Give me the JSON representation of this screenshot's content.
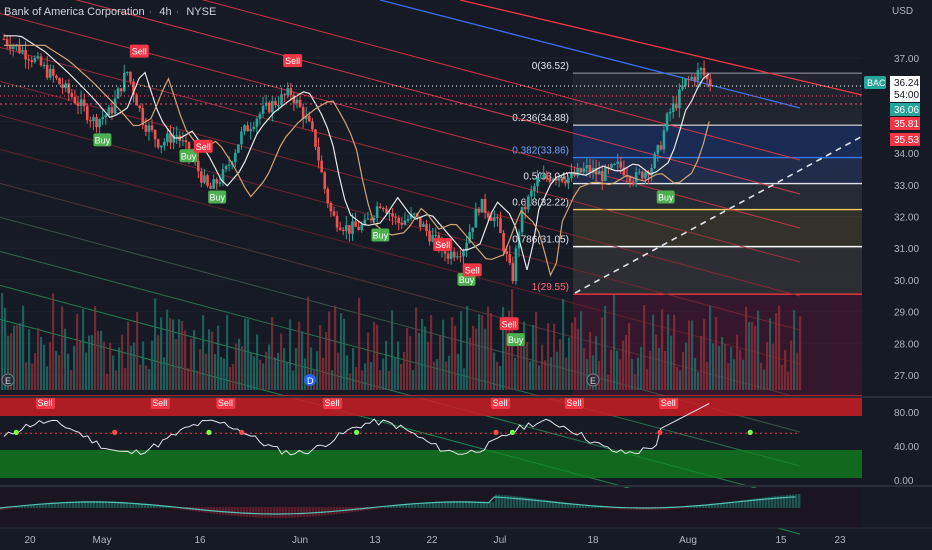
{
  "header": {
    "symbol_name": "Bank of America Corporation",
    "interval": "4h",
    "exchange": "NYSE"
  },
  "price_axis": {
    "currency": "USD",
    "ticks": [
      "37.00",
      "36.00",
      "35.00",
      "34.00",
      "33.00",
      "32.00",
      "31.00",
      "30.00",
      "29.00",
      "28.00",
      "27.00"
    ]
  },
  "badges": {
    "symbol": "BAC",
    "last_price": "36.24",
    "countdown": "54:00",
    "level_green": "36.06",
    "level_red_1": "35.81",
    "level_red_2": "35.53"
  },
  "time_axis": {
    "labels": [
      "20",
      "May",
      "16",
      "Jun",
      "13",
      "22",
      "Jul",
      "18",
      "Aug",
      "15",
      "23"
    ]
  },
  "oscillator": {
    "ticks": [
      "80.00",
      "40.00",
      "0.00"
    ],
    "signal_text": "Sell",
    "signal_count": 7
  },
  "signal_labels": {
    "buy": "Buy",
    "sell": "Sell"
  },
  "event_markers": {
    "earnings": "E",
    "dividend": "D"
  },
  "chart_data": {
    "type": "candlestick",
    "symbol": "BAC",
    "timeframe": "4h",
    "ylim": [
      26.6,
      38.2
    ],
    "fibonacci": [
      {
        "ratio": "0",
        "price": "36.52"
      },
      {
        "ratio": "0.236",
        "price": "34.88"
      },
      {
        "ratio": "0.382",
        "price": "33.86"
      },
      {
        "ratio": "0.5",
        "price": "33.04"
      },
      {
        "ratio": "0.618",
        "price": "32.22"
      },
      {
        "ratio": "0.786",
        "price": "31.05"
      },
      {
        "ratio": "1",
        "price": "29.55"
      }
    ],
    "fib_colors": [
      "#787b86",
      "#c0c0c0",
      "#3179f5",
      "#e0e3eb",
      "#f0d060",
      "#ffffff",
      "#f23645"
    ],
    "trend_signals": [
      {
        "label": "Sell",
        "x": 0.165,
        "price": 37.2
      },
      {
        "label": "Buy",
        "x": 0.12,
        "price": 34.4
      },
      {
        "label": "Buy",
        "x": 0.225,
        "price": 33.9
      },
      {
        "label": "Sell",
        "x": 0.243,
        "price": 34.2
      },
      {
        "label": "Buy",
        "x": 0.26,
        "price": 32.6
      },
      {
        "label": "Sell",
        "x": 0.352,
        "price": 36.9
      },
      {
        "label": "Buy",
        "x": 0.459,
        "price": 31.4
      },
      {
        "label": "Sell",
        "x": 0.535,
        "price": 31.1
      },
      {
        "label": "Buy",
        "x": 0.564,
        "price": 30.0
      },
      {
        "label": "Sell",
        "x": 0.571,
        "price": 30.3
      },
      {
        "label": "Sell",
        "x": 0.616,
        "price": 28.6
      },
      {
        "label": "Buy",
        "x": 0.624,
        "price": 28.1
      },
      {
        "label": "Buy",
        "x": 0.807,
        "price": 32.6
      }
    ],
    "price_path": [
      [
        0.0,
        37.6
      ],
      [
        0.03,
        37.1
      ],
      [
        0.06,
        36.4
      ],
      [
        0.09,
        35.6
      ],
      [
        0.11,
        35.0
      ],
      [
        0.13,
        35.3
      ],
      [
        0.15,
        36.6
      ],
      [
        0.17,
        35.0
      ],
      [
        0.19,
        34.3
      ],
      [
        0.21,
        34.6
      ],
      [
        0.23,
        33.8
      ],
      [
        0.25,
        32.8
      ],
      [
        0.27,
        33.4
      ],
      [
        0.29,
        34.6
      ],
      [
        0.31,
        35.2
      ],
      [
        0.33,
        35.6
      ],
      [
        0.35,
        35.9
      ],
      [
        0.37,
        35.0
      ],
      [
        0.38,
        34.3
      ],
      [
        0.39,
        33.0
      ],
      [
        0.4,
        32.0
      ],
      [
        0.42,
        31.6
      ],
      [
        0.44,
        31.7
      ],
      [
        0.46,
        32.5
      ],
      [
        0.48,
        31.8
      ],
      [
        0.5,
        32.0
      ],
      [
        0.52,
        31.4
      ],
      [
        0.54,
        30.8
      ],
      [
        0.56,
        31.0
      ],
      [
        0.58,
        32.4
      ],
      [
        0.6,
        31.9
      ],
      [
        0.61,
        31.0
      ],
      [
        0.62,
        30.0
      ],
      [
        0.63,
        32.0
      ],
      [
        0.65,
        33.1
      ],
      [
        0.67,
        33.3
      ],
      [
        0.69,
        33.2
      ],
      [
        0.71,
        33.5
      ],
      [
        0.73,
        33.3
      ],
      [
        0.75,
        33.6
      ],
      [
        0.77,
        33.2
      ],
      [
        0.79,
        33.6
      ],
      [
        0.8,
        34.2
      ],
      [
        0.81,
        35.2
      ],
      [
        0.82,
        35.6
      ],
      [
        0.83,
        36.2
      ],
      [
        0.85,
        36.6
      ],
      [
        0.86,
        36.2
      ]
    ]
  }
}
